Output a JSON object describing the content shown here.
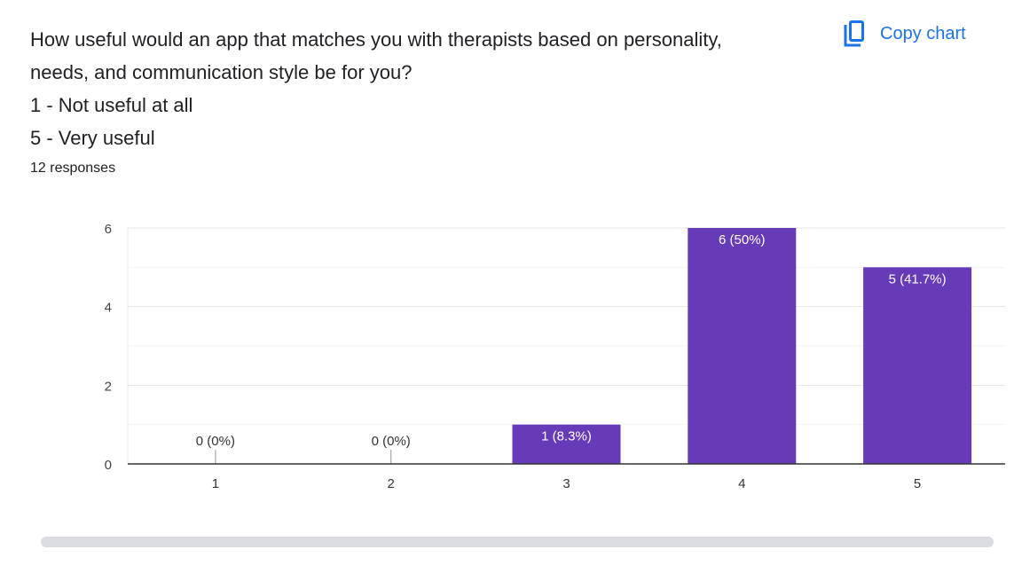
{
  "header": {
    "title_lines": [
      "How useful would an app that matches you with therapists based on personality,",
      "needs, and communication style be for you?",
      "1 - Not useful at all",
      "5 - Very useful"
    ],
    "responses": "12 responses",
    "copy_label": "Copy chart"
  },
  "colors": {
    "bar": "#673ab7",
    "accent": "#1a73e8"
  },
  "chart_data": {
    "type": "bar",
    "categories": [
      "1",
      "2",
      "3",
      "4",
      "5"
    ],
    "values": [
      0,
      0,
      1,
      6,
      5
    ],
    "data_labels": [
      "0 (0%)",
      "0 (0%)",
      "1 (8.3%)",
      "6 (50%)",
      "5 (41.7%)"
    ],
    "yticks": [
      "0",
      "2",
      "4",
      "6"
    ],
    "ylim": [
      0,
      6
    ],
    "grid": true,
    "xlabel": "",
    "ylabel": ""
  }
}
